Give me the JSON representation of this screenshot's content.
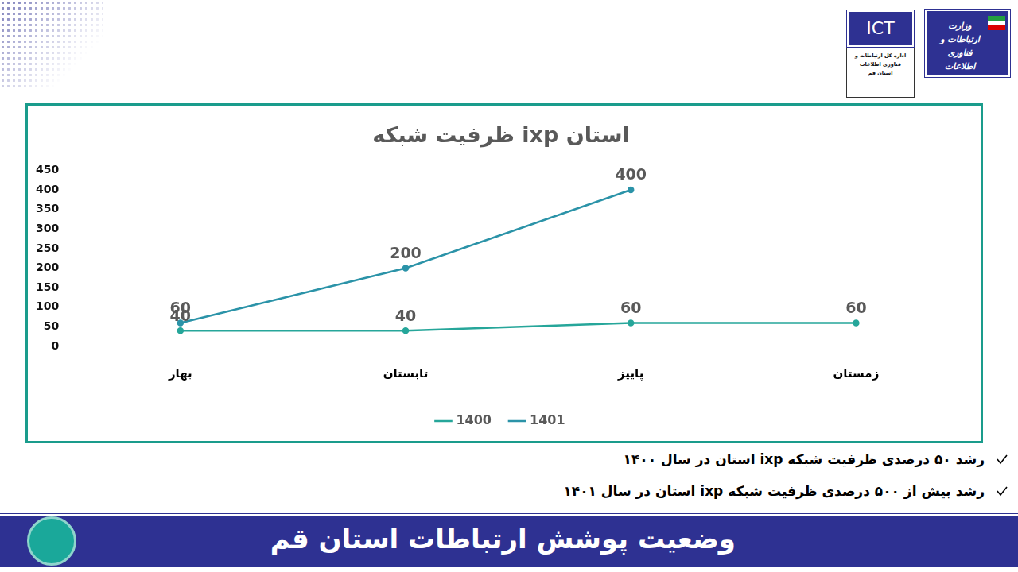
{
  "header": {
    "logo_text": "وزارت ارتباطات و فناوری اطلاعات",
    "ict_label": "ICT",
    "ict_caption": "اداره کل ارتباطات و فناوری اطلاعات استان قم"
  },
  "chart_data": {
    "type": "line",
    "title": "ظرفیت شبکه ixp استان",
    "categories": [
      "بهار",
      "تابستان",
      "پاییز",
      "زمستان"
    ],
    "series": [
      {
        "name": "1400",
        "color": "#26a69a",
        "values": [
          40,
          40,
          60,
          60
        ],
        "marker": "circle"
      },
      {
        "name": "1401",
        "color": "#2b93a8",
        "values": [
          60,
          200,
          400,
          null
        ],
        "marker": "circle"
      }
    ],
    "ylim": [
      0,
      450
    ],
    "yticks": [
      0,
      50,
      100,
      150,
      200,
      250,
      300,
      350,
      400,
      450
    ],
    "grid": false,
    "legend": "bottom",
    "data_labels": true
  },
  "bullets": [
    "رشد ۵۰ درصدی ظرفیت شبکه ixp استان در سال ۱۴۰۰",
    "رشد بیش از ۵۰۰ درصدی ظرفیت شبکه ixp استان در سال ۱۴۰۱"
  ],
  "banner": "وضعیت پوشش ارتباطات استان قم"
}
